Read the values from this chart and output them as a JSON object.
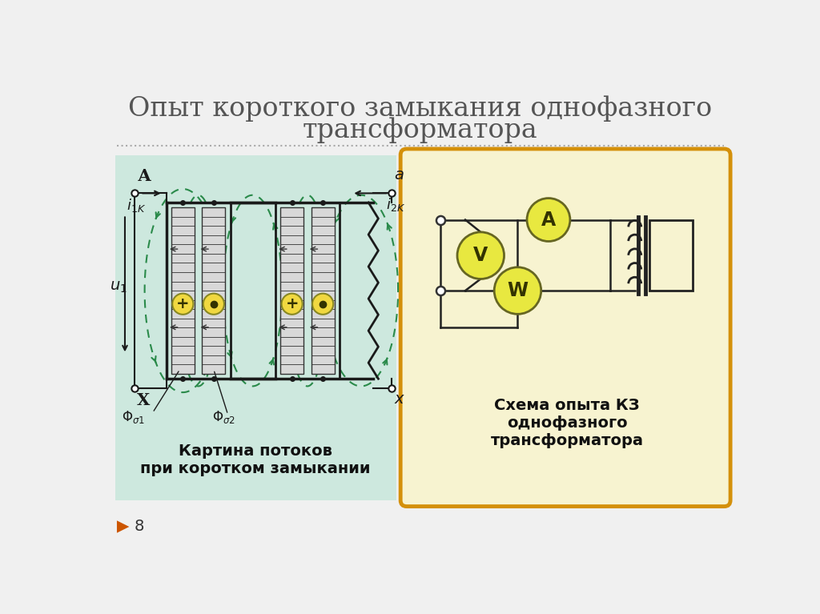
{
  "title_line1": "Опыт короткого замыкания однофазного",
  "title_line2": "трансформатора",
  "title_fontsize": 24,
  "title_color": "#555555",
  "bg_color": "#f0f0f0",
  "left_panel_bg": "#cde8de",
  "right_panel_bg": "#f7f3d0",
  "right_panel_border": "#d4900a",
  "left_caption": "Картина потоков\nпри коротком замыкании",
  "right_caption": "Схема опыта КЗ\nоднофазного\nтрансформатора",
  "page_number": "8",
  "flux_color": "#2a8a4a",
  "coil_fill": "#f0d840",
  "line_color": "#1a1a1a",
  "instrument_fill": "#e8e840",
  "instrument_border": "#666622"
}
